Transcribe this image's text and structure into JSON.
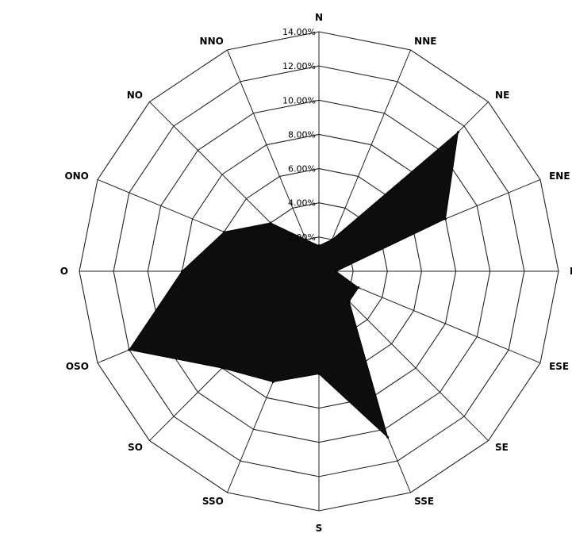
{
  "chart_data": {
    "type": "radar",
    "title": "",
    "categories": [
      "N",
      "NNE",
      "NE",
      "ENE",
      "E",
      "ESE",
      "SE",
      "SSE",
      "S",
      "SSO",
      "SO",
      "OSO",
      "O",
      "ONO",
      "NO",
      "NNO"
    ],
    "series": [
      {
        "values": [
          1.5,
          2.0,
          11.5,
          8.0,
          1.0,
          2.5,
          2.5,
          10.5,
          6.0,
          7.0,
          8.0,
          12.0,
          8.0,
          6.0,
          4.0,
          2.0
        ]
      }
    ],
    "r_range": [
      0,
      14
    ],
    "ring_ticks": [
      "2.00%",
      "4.00%",
      "6.00%",
      "8.00%",
      "10.00%",
      "12.00%",
      "14.00%"
    ],
    "grid": true,
    "colors": {
      "fill": "#0d0d0d",
      "grid": "#222222"
    }
  }
}
